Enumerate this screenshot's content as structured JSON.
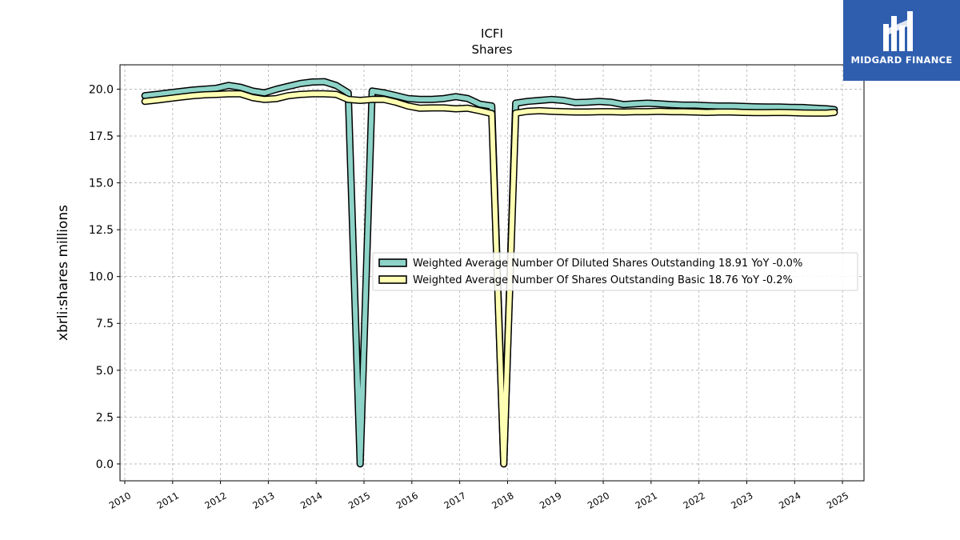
{
  "chart_data": {
    "type": "line",
    "title": "ICFI",
    "subtitle": "Shares",
    "ylabel": "xbrli:shares millions",
    "xlabel": "",
    "ylim": [
      -0.9,
      21.3
    ],
    "xlim": [
      2009.9,
      2025.45
    ],
    "yticks": [
      "0.0",
      "2.5",
      "5.0",
      "7.5",
      "10.0",
      "12.5",
      "15.0",
      "17.5",
      "20.0"
    ],
    "xticks": [
      "2010",
      "2011",
      "2012",
      "2013",
      "2014",
      "2015",
      "2016",
      "2017",
      "2018",
      "2019",
      "2020",
      "2021",
      "2022",
      "2023",
      "2024",
      "2025"
    ],
    "grid": true,
    "legend_position": "center-right",
    "x": [
      2010.42,
      2010.67,
      2010.92,
      2011.17,
      2011.42,
      2011.67,
      2011.92,
      2012.17,
      2012.42,
      2012.67,
      2012.92,
      2013.17,
      2013.42,
      2013.67,
      2013.92,
      2014.17,
      2014.42,
      2014.67,
      2014.92,
      2015.17,
      2015.42,
      2015.67,
      2015.92,
      2016.17,
      2016.42,
      2016.67,
      2016.92,
      2017.17,
      2017.42,
      2017.67,
      2017.92,
      2018.17,
      2018.42,
      2018.67,
      2018.92,
      2019.17,
      2019.42,
      2019.67,
      2019.92,
      2020.17,
      2020.42,
      2020.67,
      2020.92,
      2021.17,
      2021.42,
      2021.67,
      2021.92,
      2022.17,
      2022.42,
      2022.67,
      2022.92,
      2023.17,
      2023.42,
      2023.67,
      2023.92,
      2024.17,
      2024.42,
      2024.67,
      2024.83
    ],
    "series": [
      {
        "name": "Weighted Average Number Of Diluted Shares Outstanding  18.91 YoY -0.0%",
        "color": "#8dd3c7",
        "values": [
          19.65,
          19.72,
          19.8,
          19.88,
          19.95,
          20.0,
          20.05,
          20.2,
          20.1,
          19.9,
          19.8,
          20.0,
          20.15,
          20.3,
          20.38,
          20.4,
          20.2,
          19.8,
          0.0,
          19.9,
          19.8,
          19.65,
          19.5,
          19.45,
          19.45,
          19.5,
          19.6,
          19.5,
          19.2,
          19.1,
          0.0,
          19.25,
          19.35,
          19.4,
          19.45,
          19.4,
          19.28,
          19.3,
          19.35,
          19.3,
          19.18,
          19.22,
          19.25,
          19.22,
          19.18,
          19.15,
          19.15,
          19.12,
          19.1,
          19.1,
          19.08,
          19.06,
          19.05,
          19.05,
          19.03,
          19.02,
          18.98,
          18.95,
          18.91
        ]
      },
      {
        "name": "Weighted Average Number Of Shares Outstanding Basic  18.76 YoY -0.2%",
        "color": "#ffffb3",
        "values": [
          19.35,
          19.42,
          19.5,
          19.58,
          19.65,
          19.7,
          19.72,
          19.75,
          19.75,
          19.55,
          19.45,
          19.5,
          19.65,
          19.72,
          19.75,
          19.75,
          19.72,
          19.45,
          19.4,
          19.45,
          19.45,
          19.3,
          19.1,
          18.98,
          19.0,
          19.0,
          18.95,
          18.98,
          18.85,
          18.7,
          0.0,
          18.72,
          18.82,
          18.85,
          18.82,
          18.8,
          18.78,
          18.78,
          18.8,
          18.8,
          18.78,
          18.8,
          18.8,
          18.82,
          18.8,
          18.8,
          18.78,
          18.76,
          18.78,
          18.78,
          18.76,
          18.75,
          18.75,
          18.76,
          18.75,
          18.73,
          18.72,
          18.72,
          18.76
        ]
      }
    ]
  },
  "logo": {
    "text": "MIDGARD FINANCE",
    "background": "#2f5eaf"
  }
}
